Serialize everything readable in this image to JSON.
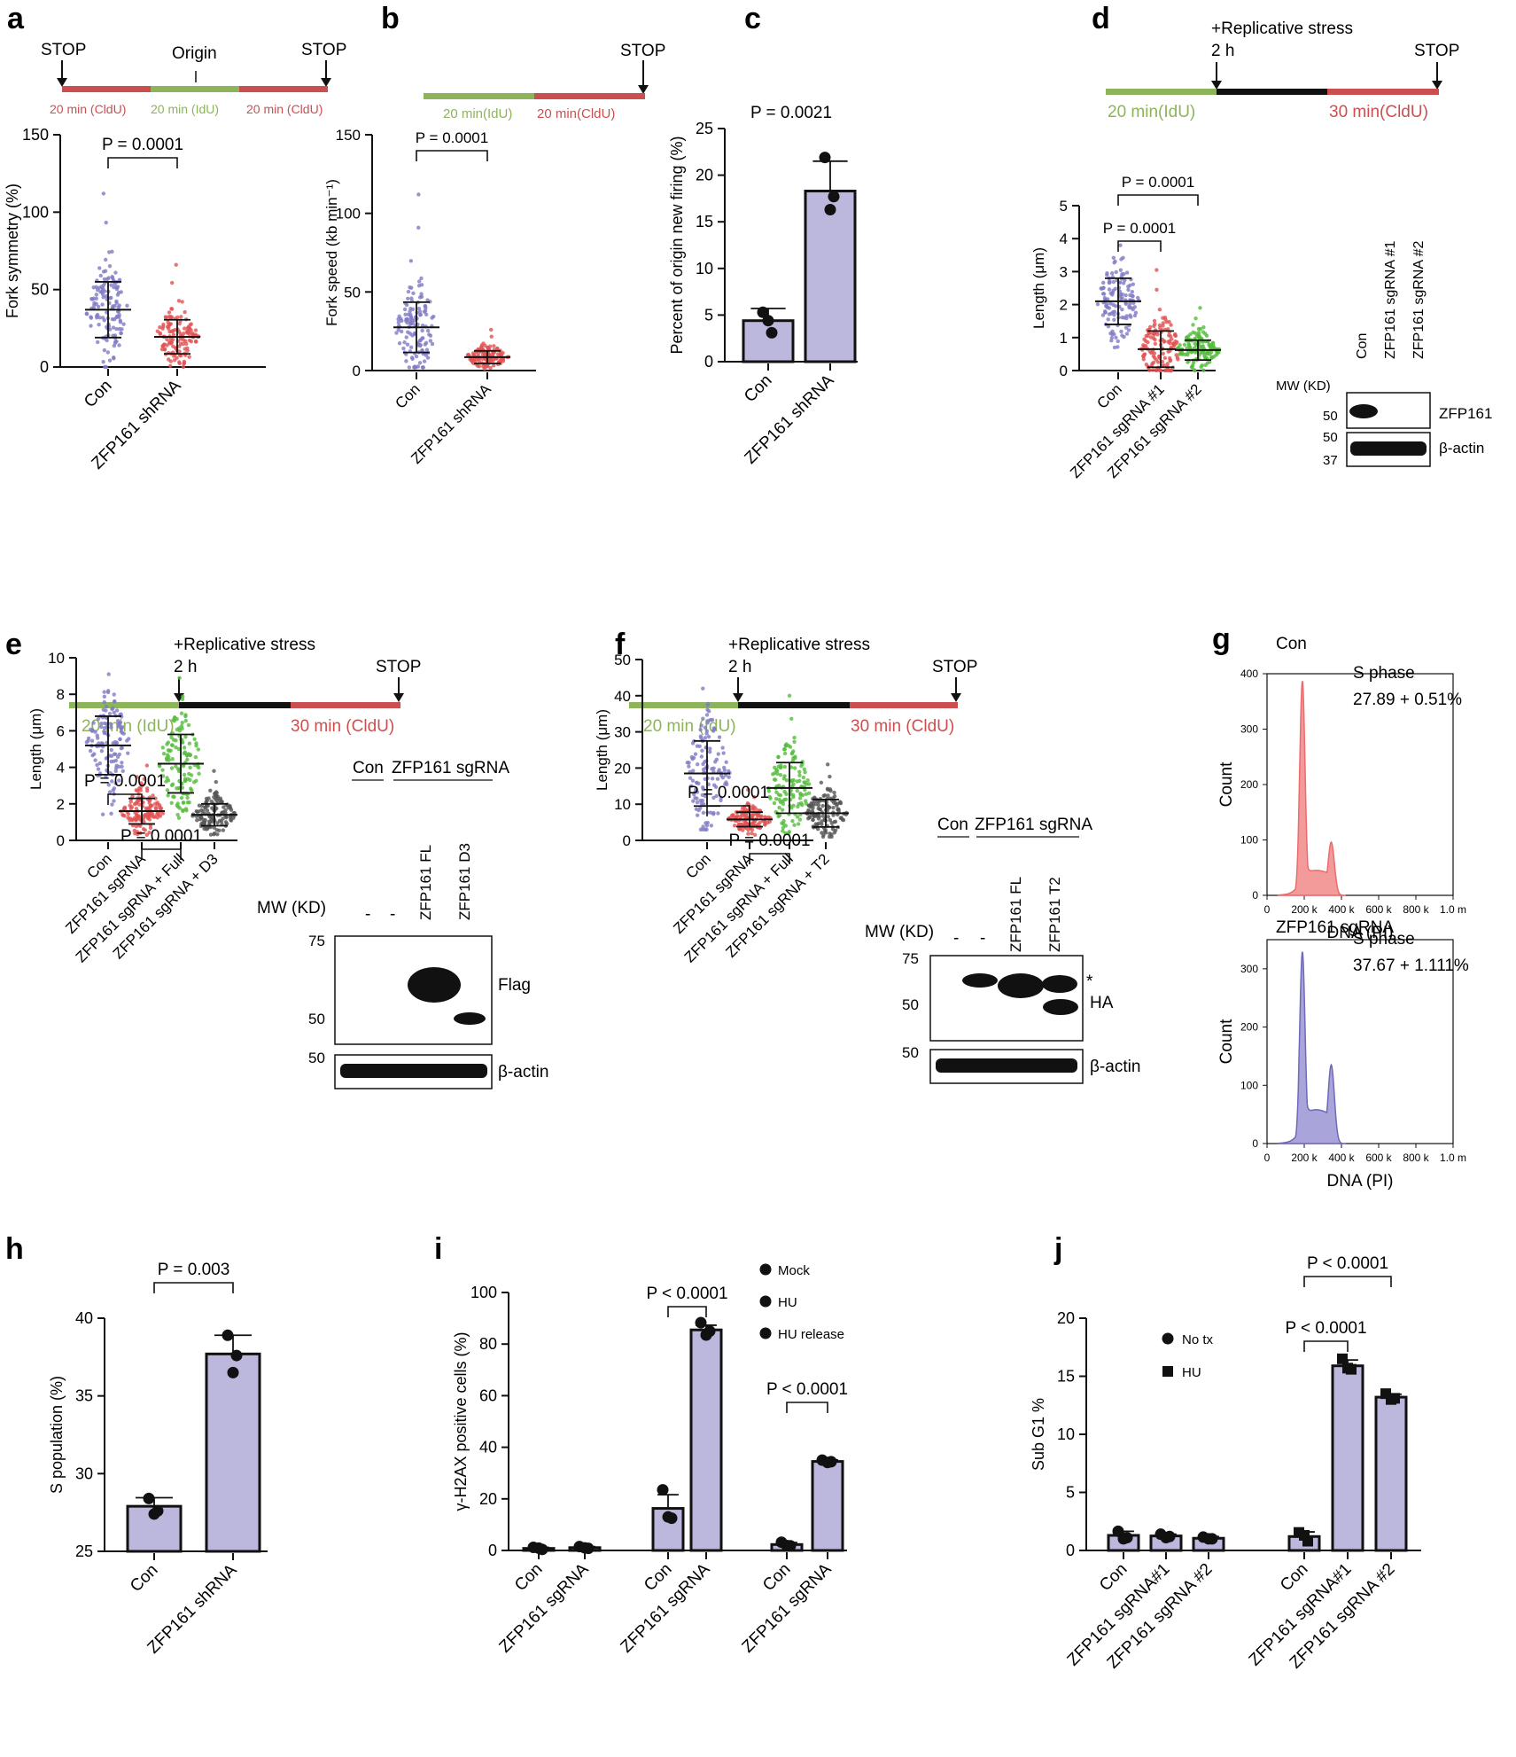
{
  "colors": {
    "bar_fill": "#bcb7dc",
    "idu": "#8db45a",
    "cldu": "#cc4f50",
    "scatter_blue": "#7f7ac4",
    "scatter_red": "#e15252",
    "scatter_green": "#55bb3c",
    "scatter_gray": "#555555",
    "hist_red": "#f39a9b",
    "hist_red_line": "#ec6b6d",
    "hist_blue": "#a9a4da",
    "hist_blue_line": "#6f69b8",
    "black": "#111111"
  },
  "panels": [
    "a",
    "b",
    "c",
    "d",
    "e",
    "f",
    "g",
    "h",
    "i",
    "j"
  ],
  "shared": {
    "stop": "STOP",
    "p_0001": "P = 0.0001",
    "p_lt": "P < 0.0001",
    "beta_actin": "β-actin",
    "mw": "MW (KD)",
    "con": "Con",
    "dash": "-"
  },
  "schemes": {
    "a": {
      "origin": "Origin",
      "seg1": "20 min (CldU)",
      "seg2": "20 min (IdU)",
      "seg3": "20 min (CldU)"
    },
    "b": {
      "seg1": "20 min(IdU)",
      "seg2": "20 min(CldU)"
    },
    "d": {
      "stress": "+Replicative stress",
      "time": "2 h",
      "seg1": "20 min(IdU)",
      "seg2": "30 min(CldU)"
    },
    "e": {
      "stress": "+Replicative stress",
      "time": "2 h",
      "seg1": "20 min (IdU)",
      "seg2": "30 min (CldU)"
    },
    "f": {
      "stress": "+Replicative stress",
      "time": "2 h",
      "seg1": "20 min (IdU)",
      "seg2": "30 min (CldU)"
    }
  },
  "western": {
    "d": {
      "lanes": [
        "Con",
        "ZFP161 sgRNA #1",
        "ZFP161 sgRNA #2"
      ],
      "mw1": "50",
      "mw2": "50",
      "mw3": "37",
      "band1": "ZFP161"
    },
    "e": {
      "group": "ZFP161 sgRNA",
      "lanes": [
        "ZFP161 FL",
        "ZFP161 D3"
      ],
      "mw1": "75",
      "mw2": "50",
      "mw3": "50",
      "band1": "Flag"
    },
    "f": {
      "group": "ZFP161 sgRNA",
      "lanes": [
        "ZFP161 FL",
        "ZFP161 T2"
      ],
      "mw1": "75",
      "mw2": "50",
      "mw3": "50",
      "band1": "HA",
      "star": "*"
    }
  },
  "chart_data": [
    {
      "panel": "a",
      "type": "scatter",
      "ylabel": "Fork symmetry (%)",
      "ylim": [
        0,
        150
      ],
      "yticks": [
        0,
        50,
        100,
        150
      ],
      "categories": [
        "Con",
        "ZFP161 shRNA"
      ],
      "means": [
        37,
        19.5
      ],
      "sd": [
        18,
        11
      ],
      "spread": [
        [
          0,
          112
        ],
        [
          0,
          66
        ]
      ],
      "comparisons": [
        {
          "between": [
            0,
            1
          ],
          "p": "P = 0.0001"
        }
      ]
    },
    {
      "panel": "b",
      "type": "scatter",
      "ylabel": "Fork speed (kb min⁻¹)",
      "ylim": [
        0,
        150
      ],
      "yticks": [
        0,
        50,
        100,
        150
      ],
      "categories": [
        "Con",
        "ZFP161 shRNA"
      ],
      "means": [
        27.5,
        8.5
      ],
      "sd": [
        16,
        4
      ],
      "spread": [
        [
          2,
          112
        ],
        [
          1,
          26
        ]
      ],
      "comparisons": [
        {
          "between": [
            0,
            1
          ],
          "p": "P = 0.0001"
        }
      ]
    },
    {
      "panel": "c",
      "type": "bar",
      "ylabel": "Percent of origin new firing (%)",
      "ylim": [
        0,
        25
      ],
      "yticks": [
        0,
        5,
        10,
        15,
        20,
        25
      ],
      "categories": [
        "Con",
        "ZFP161 shRNA"
      ],
      "values": [
        4.4,
        18.3
      ],
      "sd": [
        1.3,
        3.2
      ],
      "points": [
        [
          5.3,
          3.1,
          4.4
        ],
        [
          21.9,
          17.7,
          16.3
        ]
      ],
      "title_p": "P = 0.0021"
    },
    {
      "panel": "d",
      "type": "scatter",
      "ylabel": "Length (μm)",
      "ylim": [
        0,
        5
      ],
      "yticks": [
        0,
        1,
        2,
        3,
        4,
        5
      ],
      "categories": [
        "Con",
        "ZFP161 sgRNA #1",
        "ZFP161 sgRNA #2"
      ],
      "means": [
        2.1,
        0.65,
        0.62
      ],
      "sd": [
        0.7,
        0.55,
        0.3
      ],
      "spread": [
        [
          0.7,
          3.8
        ],
        [
          0,
          3.05
        ],
        [
          0,
          1.9
        ]
      ],
      "comparisons": [
        {
          "between": [
            0,
            1
          ],
          "p": "P = 0.0001"
        },
        {
          "between": [
            0,
            2
          ],
          "p": "P = 0.0001"
        }
      ]
    },
    {
      "panel": "e",
      "type": "scatter",
      "ylabel": "Length (μm)",
      "ylim": [
        0,
        10
      ],
      "yticks": [
        0,
        2,
        4,
        6,
        8,
        10
      ],
      "categories": [
        "Con",
        "ZFP161 sgRNA",
        "ZFP161 sgRNA + Full",
        "ZFP161 sgRNA + D3"
      ],
      "means": [
        5.2,
        1.6,
        4.2,
        1.4
      ],
      "sd": [
        1.6,
        0.7,
        1.6,
        0.6
      ],
      "spread": [
        [
          1.2,
          9.1
        ],
        [
          0.2,
          4.1
        ],
        [
          0.6,
          8.9
        ],
        [
          0.3,
          3.8
        ]
      ],
      "comparisons": [
        {
          "between": [
            0,
            1
          ],
          "p": "P = 0.0001"
        },
        {
          "between": [
            1,
            2
          ],
          "p": "P = 0.0001"
        }
      ]
    },
    {
      "panel": "f",
      "type": "scatter",
      "ylabel": "Length (μm)",
      "ylim": [
        0,
        50
      ],
      "yticks": [
        0,
        10,
        20,
        30,
        40,
        50
      ],
      "categories": [
        "Con",
        "ZFP161 sgRNA",
        "ZFP161 sgRNA + Full",
        "ZFP161 sgRNA + T2"
      ],
      "means": [
        18.5,
        5.8,
        14.5,
        7.5
      ],
      "sd": [
        9,
        2,
        7,
        3.8
      ],
      "spread": [
        [
          3,
          42
        ],
        [
          1,
          14
        ],
        [
          2,
          40
        ],
        [
          1,
          21
        ]
      ],
      "comparisons": [
        {
          "between": [
            0,
            1
          ],
          "p": "P = 0.0001"
        },
        {
          "between": [
            1,
            2
          ],
          "p": "P = 0.0001"
        }
      ]
    },
    {
      "panel": "g",
      "type": "area",
      "histograms": [
        {
          "title": "Con",
          "stat_label": "S phase",
          "stat_value": "27.89 + 0.51%",
          "ylabel": "Count",
          "xlabel": "DNA (PI)",
          "ylim": [
            0,
            400
          ],
          "yticks": [
            0,
            100,
            200,
            300,
            400
          ],
          "g1_peak": 380,
          "g2_peak": 96,
          "s_level": 45
        },
        {
          "title": "ZFP161 sgRNA",
          "stat_label": "S phase",
          "stat_value": "37.67 + 1.111%",
          "ylabel": "Count",
          "xlabel": "DNA (PI)",
          "ylim": [
            0,
            350
          ],
          "yticks": [
            0,
            100,
            200,
            300
          ],
          "g1_peak": 320,
          "g2_peak": 135,
          "s_level": 58
        }
      ],
      "xticks": [
        "0",
        "200 k",
        "400 k",
        "600 k",
        "800 k",
        "1.0 m"
      ]
    },
    {
      "panel": "h",
      "type": "bar",
      "ylabel": "S population (%)",
      "ylim": [
        25,
        40
      ],
      "yticks": [
        25,
        30,
        35,
        40
      ],
      "categories": [
        "Con",
        "ZFP161 shRNA"
      ],
      "values": [
        27.9,
        37.7
      ],
      "sd": [
        0.55,
        1.2
      ],
      "points": [
        [
          28.4,
          27.6,
          27.4
        ],
        [
          38.9,
          37.6,
          36.5
        ]
      ],
      "comparisons": [
        {
          "between": [
            0,
            1
          ],
          "p": "P = 0.003"
        }
      ]
    },
    {
      "panel": "i",
      "type": "bar",
      "ylabel": "γ-H2AX positive cells (%)",
      "ylim": [
        0,
        100
      ],
      "yticks": [
        0,
        20,
        40,
        60,
        80,
        100
      ],
      "groups": [
        "Mock",
        "HU",
        "HU release"
      ],
      "categories": [
        "Con",
        "ZFP161 sgRNA"
      ],
      "series": [
        {
          "name": "Mock",
          "values": [
            0.8,
            1.1
          ],
          "sd": [
            0.4,
            0.4
          ],
          "points": [
            [
              1.2,
              0.4,
              0.9
            ],
            [
              1.5,
              0.8,
              1.0
            ]
          ]
        },
        {
          "name": "HU",
          "values": [
            16.3,
            85.5
          ],
          "sd": [
            5.3,
            1.8
          ],
          "points": [
            [
              23.5,
              12.5,
              13
            ],
            [
              88.3,
              85,
              83.5
            ]
          ]
        },
        {
          "name": "HU release",
          "values": [
            2.3,
            34.5
          ],
          "sd": [
            0.8,
            0.6
          ],
          "points": [
            [
              3.2,
              1.8,
              1.9
            ],
            [
              35,
              34.4,
              34.1
            ]
          ]
        }
      ],
      "comparisons": [
        {
          "series": "HU",
          "p": "P < 0.0001"
        },
        {
          "series": "HU release",
          "p": "P < 0.0001"
        }
      ]
    },
    {
      "panel": "j",
      "type": "bar",
      "ylabel": "Sub G1 %",
      "ylim": [
        0,
        20
      ],
      "yticks": [
        0,
        5,
        10,
        15,
        20
      ],
      "groups": [
        "No tx",
        "HU"
      ],
      "categories": [
        "Con",
        "ZFP161 sgRNA#1",
        "ZFP161 sgRNA #2"
      ],
      "series": [
        {
          "name": "No tx",
          "values": [
            1.3,
            1.25,
            1.05
          ],
          "sd": [
            0.35,
            0.15,
            0.15
          ],
          "points": [
            [
              1.65,
              1.1,
              1.0
            ],
            [
              1.4,
              1.2,
              1.1
            ],
            [
              1.15,
              1.0,
              1.0
            ]
          ]
        },
        {
          "name": "HU",
          "values": [
            1.2,
            15.9,
            13.2
          ],
          "sd": [
            0.4,
            0.5,
            0.25
          ],
          "points": [
            [
              1.55,
              0.8,
              1.3
            ],
            [
              16.5,
              15.6,
              15.7
            ],
            [
              13.5,
              13.1,
              13.0
            ]
          ]
        }
      ],
      "comparisons": [
        {
          "between": [
            "HU:Con",
            "HU:ZFP161 sgRNA#1"
          ],
          "p": "P < 0.0001"
        },
        {
          "between": [
            "HU:Con",
            "HU:ZFP161 sgRNA #2"
          ],
          "p": "P < 0.0001"
        }
      ]
    }
  ]
}
